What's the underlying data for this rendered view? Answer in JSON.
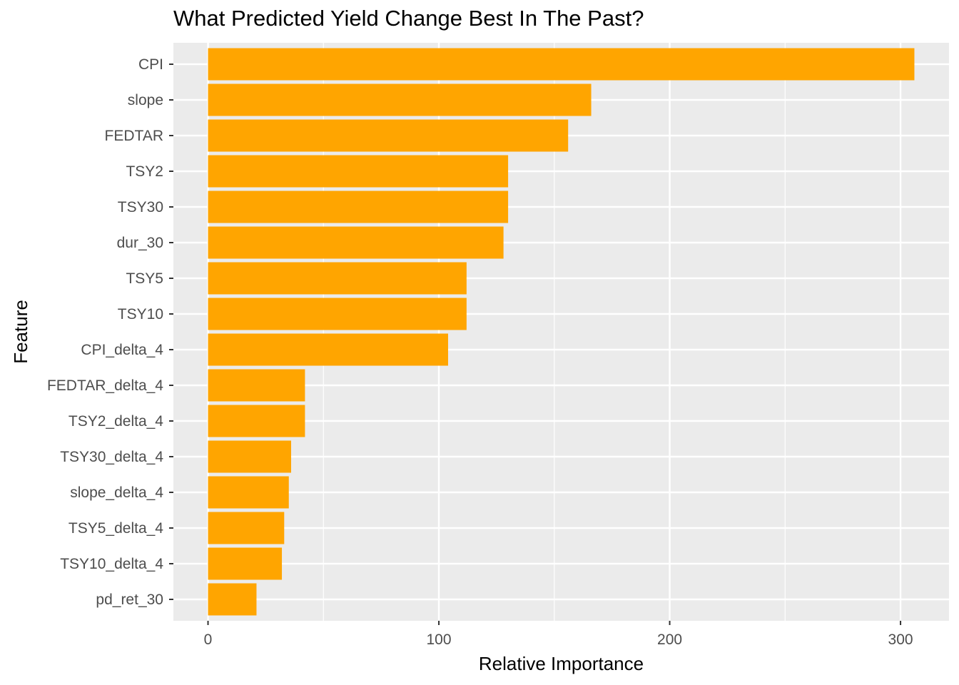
{
  "chart_data": {
    "type": "bar",
    "orientation": "horizontal",
    "title": "What Predicted Yield Change Best In The Past?",
    "xlabel": "Relative Importance",
    "ylabel": "Feature",
    "categories": [
      "CPI",
      "slope",
      "FEDTAR",
      "TSY2",
      "TSY30",
      "dur_30",
      "TSY5",
      "TSY10",
      "CPI_delta_4",
      "FEDTAR_delta_4",
      "TSY2_delta_4",
      "TSY30_delta_4",
      "slope_delta_4",
      "TSY5_delta_4",
      "TSY10_delta_4",
      "pd_ret_30"
    ],
    "values": [
      306,
      166,
      156,
      130,
      130,
      128,
      112,
      112,
      104,
      42,
      42,
      36,
      35,
      33,
      32,
      21
    ],
    "xlim": [
      -15,
      321
    ],
    "x_ticks": [
      0,
      100,
      200,
      300
    ],
    "x_tick_labels": [
      "0",
      "100",
      "200",
      "300"
    ],
    "grid": true,
    "colors": {
      "bar": "#FFA500",
      "panel_background": "#EBEBEB",
      "grid": "#FFFFFF",
      "tick_text": "#4D4D4D"
    }
  }
}
